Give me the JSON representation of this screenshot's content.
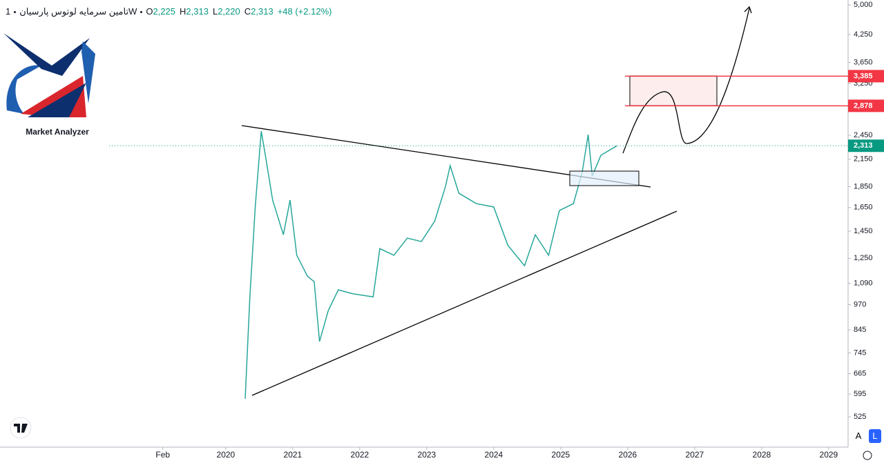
{
  "header": {
    "symbol": "تامین سرمایه لوتوس پارسیان",
    "interval": "1W",
    "ohlc": [
      {
        "label": "O",
        "value": "2,225"
      },
      {
        "label": "H",
        "value": "2,313"
      },
      {
        "label": "L",
        "value": "2,220"
      },
      {
        "label": "C",
        "value": "2,313"
      }
    ],
    "change": "+48 (+2.12%)"
  },
  "logo": {
    "text": "Market Analyzer"
  },
  "controls": {
    "auto": "A",
    "log": "L"
  },
  "chart_data": {
    "type": "line",
    "log_scale": true,
    "grid": false,
    "series": [
      {
        "color": "#26a69a",
        "x": [
          2020.29,
          2020.36,
          2020.44,
          2020.53,
          2020.6,
          2020.7,
          2020.86,
          2020.96,
          2021.06,
          2021.22,
          2021.32,
          2021.4,
          2021.53,
          2021.68,
          2021.89,
          2022.2,
          2022.3,
          2022.51,
          2022.71,
          2022.92,
          2023.12,
          2023.28,
          2023.35,
          2023.48,
          2023.74,
          2024.0,
          2024.21,
          2024.46,
          2024.62,
          2024.82,
          2024.98,
          2025.19,
          2025.32,
          2025.41,
          2025.47,
          2025.6,
          2025.84
        ],
        "values": [
          580,
          1012,
          1655,
          2505,
          2154,
          1718,
          1422,
          1718,
          1271,
          1133,
          1100,
          793,
          939,
          1052,
          1030,
          1012,
          1318,
          1271,
          1396,
          1370,
          1533,
          1852,
          2074,
          1784,
          1686,
          1655,
          1343,
          1200,
          1422,
          1271,
          1623,
          1686,
          1998,
          2458,
          1960,
          2196,
          2313
        ]
      }
    ],
    "xlim": [
      2016.63,
      2029.29
    ],
    "xticks": [
      {
        "value": 2019.06,
        "label": "Feb"
      },
      2020,
      2021,
      2022,
      2023,
      2024,
      2025,
      2026,
      2027,
      2028,
      2029
    ],
    "ylim": [
      445,
      5134
    ],
    "yticks": [
      {
        "value": 5000,
        "label": "5,000"
      },
      {
        "value": 4250,
        "label": "4,250"
      },
      {
        "value": 3650,
        "label": "3,650"
      },
      {
        "value": 3250,
        "label": "3,250"
      },
      {
        "value": 2450,
        "label": "2,450"
      },
      {
        "value": 2150,
        "label": "2,150"
      },
      {
        "value": 1850,
        "label": "1,850"
      },
      {
        "value": 1650,
        "label": "1,650"
      },
      {
        "value": 1450,
        "label": "1,450"
      },
      {
        "value": 1250,
        "label": "1,250"
      },
      {
        "value": 1090,
        "label": "1,090"
      },
      970,
      845,
      745,
      665,
      595,
      525
    ],
    "price_lines": [
      {
        "value": 3385,
        "label": "3,385",
        "color": "#f23645"
      },
      {
        "value": 2878,
        "label": "2,878",
        "color": "#f23645"
      },
      {
        "value": 2313,
        "label": "2,313",
        "color": "#089981"
      }
    ]
  }
}
